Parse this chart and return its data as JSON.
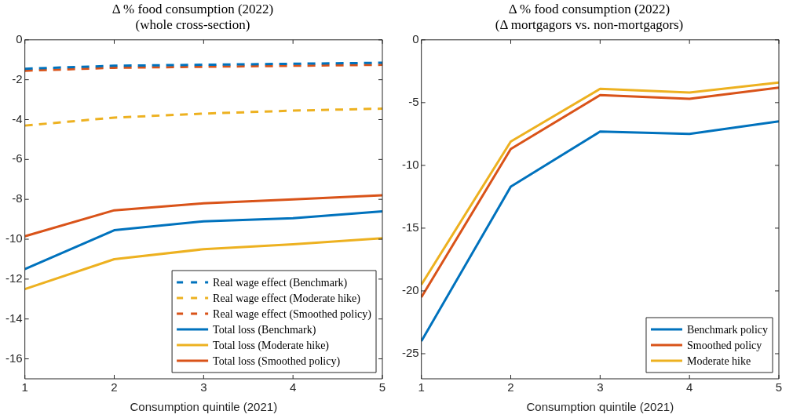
{
  "chart_data": [
    {
      "type": "line",
      "title": "Δ % food consumption (2022)",
      "subtitle": "(whole cross-section)",
      "xlabel": "Consumption quintile (2021)",
      "x": [
        1,
        2,
        3,
        4,
        5
      ],
      "xlim": [
        1,
        5
      ],
      "xticks": [
        1,
        2,
        3,
        4,
        5
      ],
      "ylim": [
        -17,
        0
      ],
      "yticks": [
        0,
        -2,
        -4,
        -6,
        -8,
        -10,
        -12,
        -14,
        -16
      ],
      "grid": false,
      "legend": "bottom right",
      "marker": "none",
      "series": [
        {
          "name": "Real wage effect (Benchmark)",
          "color": "#0072bd",
          "line_style": "dashed",
          "values": [
            -1.45,
            -1.3,
            -1.25,
            -1.2,
            -1.15
          ]
        },
        {
          "name": "Real wage effect (Moderate hike)",
          "color": "#edb120",
          "line_style": "dashed",
          "values": [
            -4.3,
            -3.9,
            -3.7,
            -3.55,
            -3.45
          ]
        },
        {
          "name": "Real wage effect (Smoothed policy)",
          "color": "#d95319",
          "line_style": "dashed",
          "values": [
            -1.55,
            -1.4,
            -1.35,
            -1.3,
            -1.25
          ]
        },
        {
          "name": "Total loss (Benchmark)",
          "color": "#0072bd",
          "line_style": "solid",
          "values": [
            -11.5,
            -9.55,
            -9.1,
            -8.95,
            -8.6
          ]
        },
        {
          "name": "Total loss (Moderate hike)",
          "color": "#edb120",
          "line_style": "solid",
          "values": [
            -12.5,
            -11.0,
            -10.5,
            -10.25,
            -9.95
          ]
        },
        {
          "name": "Total loss (Smoothed policy)",
          "color": "#d95319",
          "line_style": "solid",
          "values": [
            -9.85,
            -8.55,
            -8.2,
            -8.0,
            -7.8
          ]
        }
      ]
    },
    {
      "type": "line",
      "title": "Δ % food consumption (2022)",
      "subtitle": "(Δ mortgagors vs. non-mortgagors)",
      "xlabel": "Consumption quintile (2021)",
      "x": [
        1,
        2,
        3,
        4,
        5
      ],
      "xlim": [
        1,
        5
      ],
      "xticks": [
        1,
        2,
        3,
        4,
        5
      ],
      "ylim": [
        -27,
        0
      ],
      "yticks": [
        0,
        -5,
        -10,
        -15,
        -20,
        -25
      ],
      "grid": false,
      "legend": "bottom right",
      "marker": "none",
      "series": [
        {
          "name": "Benchmark policy",
          "color": "#0072bd",
          "values": [
            -24,
            -11.7,
            -7.3,
            -7.5,
            -6.5
          ]
        },
        {
          "name": "Smoothed policy",
          "color": "#d95319",
          "values": [
            -20.5,
            -8.7,
            -4.4,
            -4.7,
            -3.8
          ]
        },
        {
          "name": "Moderate hike",
          "color": "#edb120",
          "values": [
            -19.5,
            -8.1,
            -3.9,
            -4.2,
            -3.4
          ]
        }
      ]
    }
  ]
}
